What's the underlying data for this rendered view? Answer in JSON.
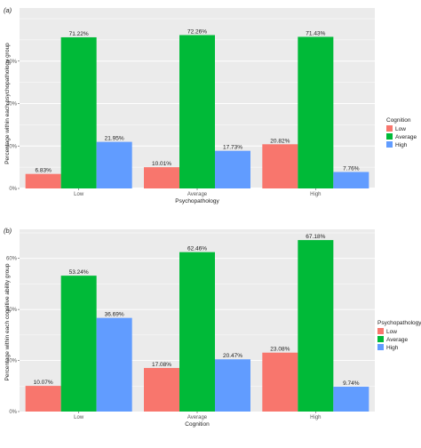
{
  "chart_data": [
    {
      "panel_label": "(a)",
      "type": "bar",
      "xlabel": "Psychopathology",
      "ylabel": "Percentage within each psychopathology group",
      "categories": [
        "Low",
        "Average",
        "High"
      ],
      "legend_title": "Cognition",
      "legend_position": "right",
      "grid": true,
      "ylim": [
        0,
        80
      ],
      "yticks": [
        0,
        20,
        40,
        60
      ],
      "ytick_labels": [
        "0%",
        "20%",
        "40%",
        "60%"
      ],
      "series": [
        {
          "name": "Low",
          "color": "#F8766D",
          "values": [
            6.83,
            10.01,
            20.82
          ],
          "labels": [
            "6.83%",
            "10.01%",
            "20.82%"
          ]
        },
        {
          "name": "Average",
          "color": "#00BA38",
          "values": [
            71.22,
            72.26,
            71.43
          ],
          "labels": [
            "71.22%",
            "72.26%",
            "71.43%"
          ]
        },
        {
          "name": "High",
          "color": "#619CFF",
          "values": [
            21.95,
            17.73,
            7.76
          ],
          "labels": [
            "21.95%",
            "17.73%",
            "7.76%"
          ]
        }
      ]
    },
    {
      "panel_label": "(b)",
      "type": "bar",
      "xlabel": "Cognition",
      "ylabel": "Percentage within each cognitive ability group",
      "categories": [
        "Low",
        "Average",
        "High"
      ],
      "legend_title": "Psychopathology",
      "legend_position": "right",
      "grid": true,
      "ylim": [
        0,
        70
      ],
      "yticks": [
        0,
        20,
        40,
        60
      ],
      "ytick_labels": [
        "0%",
        "20%",
        "40%",
        "60%"
      ],
      "series": [
        {
          "name": "Low",
          "color": "#F8766D",
          "values": [
            10.07,
            17.08,
            23.08
          ],
          "labels": [
            "10.07%",
            "17.08%",
            "23.08%"
          ]
        },
        {
          "name": "Average",
          "color": "#00BA38",
          "values": [
            53.24,
            62.46,
            67.18
          ],
          "labels": [
            "53.24%",
            "62.46%",
            "67.18%"
          ]
        },
        {
          "name": "High",
          "color": "#619CFF",
          "values": [
            36.69,
            20.47,
            9.74
          ],
          "labels": [
            "36.69%",
            "20.47%",
            "9.74%"
          ]
        }
      ]
    }
  ],
  "style": {
    "panel_background": "#EBEBEB",
    "grid_color": "#FFFFFF"
  }
}
